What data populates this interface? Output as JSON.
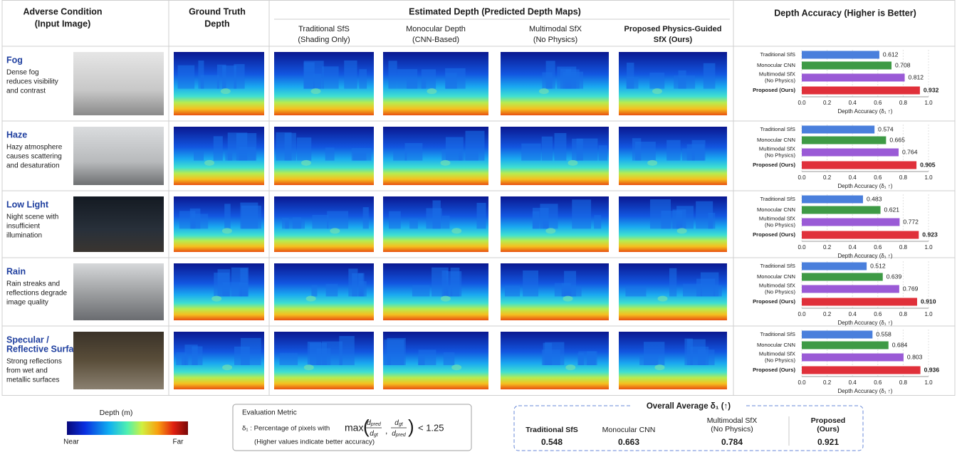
{
  "header": {
    "input": [
      "Adverse Condition",
      "(Input Image)"
    ],
    "ground_truth": [
      "Ground Truth",
      "Depth"
    ],
    "estimated": "Estimated Depth (Predicted Depth Maps)",
    "methods": [
      [
        "Traditional SfS",
        "(Shading Only)"
      ],
      [
        "Monocular Depth",
        "(CNN-Based)"
      ],
      [
        "Multimodal SfX",
        "(No Physics)"
      ],
      [
        "Proposed Physics-Guided",
        "SfX (Ours)"
      ]
    ],
    "accuracy": "Depth Accuracy (Higher is Better)"
  },
  "rows": [
    {
      "name": [
        "Fog"
      ],
      "desc": [
        "Dense fog",
        "reduces visibility",
        "and contrast"
      ]
    },
    {
      "name": [
        "Haze"
      ],
      "desc": [
        "Hazy atmosphere",
        "causes scattering",
        "and desaturation"
      ]
    },
    {
      "name": [
        "Low Light"
      ],
      "desc": [
        "Night scene with",
        "insufficient",
        "illumination"
      ]
    },
    {
      "name": [
        "Rain"
      ],
      "desc": [
        "Rain streaks and",
        "reflections degrade",
        "image quality"
      ]
    },
    {
      "name": [
        "Specular /",
        "Reflective Surfaces"
      ],
      "desc": [
        "Strong reflections",
        "from wet and",
        "metallic surfaces"
      ]
    }
  ],
  "chart_data": [
    {
      "type": "bar",
      "orientation": "horizontal",
      "categories": [
        [
          "Traditional SfS"
        ],
        [
          "Monocular CNN"
        ],
        [
          "Multimodal SfX",
          "(No Physics)"
        ],
        [
          "Proposed (Ours)"
        ]
      ],
      "values": [
        0.612,
        0.708,
        0.812,
        0.932
      ],
      "colors": [
        "#4a7fdc",
        "#3e9a45",
        "#9a5ad6",
        "#e0303a"
      ],
      "xlim": [
        0,
        1
      ],
      "xticks": [
        {
          "value": 0,
          "label": "0.0"
        },
        0.2,
        0.4,
        0.6,
        0.8,
        {
          "value": 1,
          "label": "1.0"
        }
      ],
      "xlabel": "Depth Accuracy (δ₁ ↑)",
      "grid": true
    },
    {
      "type": "bar",
      "orientation": "horizontal",
      "categories": [
        [
          "Traditional SfS"
        ],
        [
          "Monocular CNN"
        ],
        [
          "Multimodal SfX",
          "(No Physics)"
        ],
        [
          "Proposed (Ours)"
        ]
      ],
      "values": [
        0.574,
        0.665,
        0.764,
        0.905
      ],
      "colors": [
        "#4a7fdc",
        "#3e9a45",
        "#9a5ad6",
        "#e0303a"
      ],
      "xlim": [
        0,
        1
      ],
      "xticks": [
        {
          "value": 0,
          "label": "0.0"
        },
        0.2,
        0.4,
        0.6,
        0.8,
        {
          "value": 1,
          "label": "1.0"
        }
      ],
      "xlabel": "Depth Accuracy (δ₁ ↑)",
      "grid": true
    },
    {
      "type": "bar",
      "orientation": "horizontal",
      "categories": [
        [
          "Traditional SfS"
        ],
        [
          "Monocular CNN"
        ],
        [
          "Multimodal SfX",
          "(No Physics)"
        ],
        [
          "Proposed (Ours)"
        ]
      ],
      "values": [
        0.483,
        0.621,
        0.772,
        0.923
      ],
      "colors": [
        "#4a7fdc",
        "#3e9a45",
        "#9a5ad6",
        "#e0303a"
      ],
      "xlim": [
        0,
        1
      ],
      "xticks": [
        {
          "value": 0,
          "label": "0.0"
        },
        0.2,
        0.4,
        0.6,
        0.8,
        {
          "value": 1,
          "label": "1.0"
        }
      ],
      "xlabel": "Depth Accuracy (δ₁ ↑)",
      "grid": true
    },
    {
      "type": "bar",
      "orientation": "horizontal",
      "categories": [
        [
          "Traditional SfS"
        ],
        [
          "Monocular CNN"
        ],
        [
          "Multimodal SfX",
          "(No Physics)"
        ],
        [
          "Proposed (Ours)"
        ]
      ],
      "values": [
        0.512,
        0.639,
        0.769,
        0.91
      ],
      "value_labels": [
        "0.512",
        "0.639",
        "0.769",
        "0.910"
      ],
      "colors": [
        "#4a7fdc",
        "#3e9a45",
        "#9a5ad6",
        "#e0303a"
      ],
      "xlim": [
        0,
        1
      ],
      "xticks": [
        {
          "value": 0,
          "label": "0.0"
        },
        0.2,
        0.4,
        0.6,
        0.8,
        {
          "value": 1,
          "label": "1.0"
        }
      ],
      "xlabel": "Depth Accuracy (δ₁ ↑)",
      "grid": true
    },
    {
      "type": "bar",
      "orientation": "horizontal",
      "categories": [
        [
          "Traditional SfS"
        ],
        [
          "Monocular CNN"
        ],
        [
          "Multimodal SfX",
          "(No Physics)"
        ],
        [
          "Proposed (Ours)"
        ]
      ],
      "values": [
        0.558,
        0.684,
        0.803,
        0.936
      ],
      "colors": [
        "#4a7fdc",
        "#3e9a45",
        "#9a5ad6",
        "#e0303a"
      ],
      "xlim": [
        0,
        1
      ],
      "xticks": [
        {
          "value": 0,
          "label": "0.0"
        },
        0.2,
        0.4,
        0.6,
        0.8,
        {
          "value": 1,
          "label": "1.0"
        }
      ],
      "xlabel": "Depth Accuracy (δ₁ ↑)",
      "grid": true
    }
  ],
  "colorbar": {
    "title": "Depth (m)",
    "near": "Near",
    "far": "Far"
  },
  "metric": {
    "title": "Evaluation Metric",
    "lead": "δ₁ : Percentage of pixels with",
    "function": "max",
    "fractions": [
      [
        "d",
        "pred",
        "d",
        "gt"
      ],
      [
        "d",
        "gt",
        "d",
        "pred"
      ]
    ],
    "comparison": "< 1.25",
    "note": "(Higher values indicate better accuracy)"
  },
  "overall": {
    "title": "Overall Average δ₁ (↑)",
    "items": [
      {
        "label": [
          "Traditional SfS"
        ],
        "value": 0.548
      },
      {
        "label": [
          "Monocular CNN"
        ],
        "value": 0.663
      },
      {
        "label": [
          "Multimodal SfX",
          "(No Physics)"
        ],
        "value": 0.784
      },
      {
        "label": [
          "Proposed",
          "(Ours)"
        ],
        "value": 0.921
      }
    ]
  }
}
